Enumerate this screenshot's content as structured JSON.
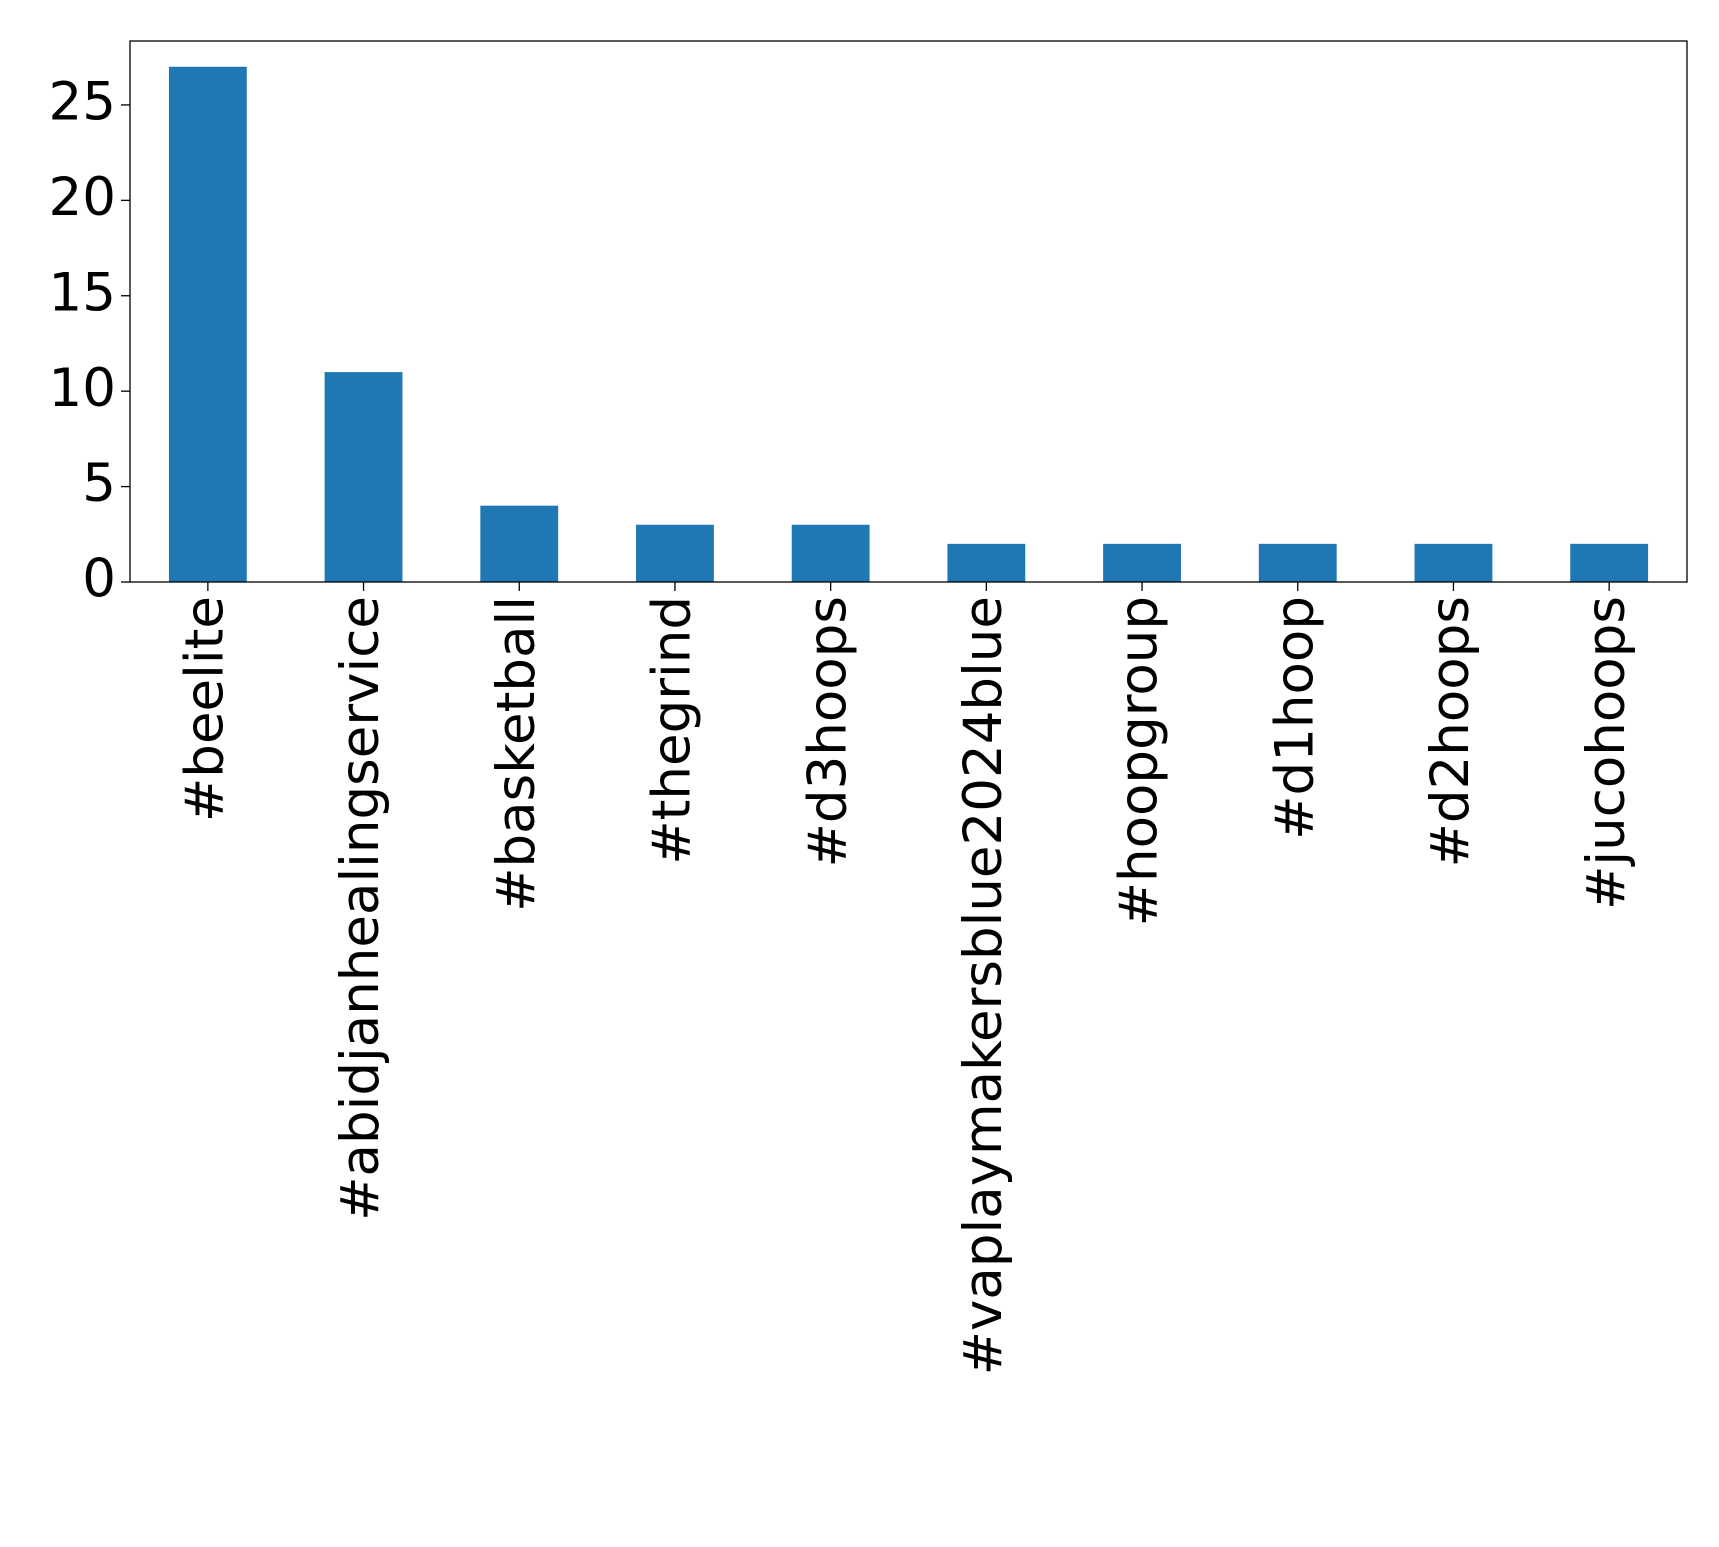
{
  "chart_data": {
    "type": "bar",
    "categories": [
      "#beelite",
      "#abidjanhealingservice",
      "#basketball",
      "#thegrind",
      "#d3hoops",
      "#vaplaymakersblue2024blue",
      "#hoopgroup",
      "#d1hoop",
      "#d2hoops",
      "#jucohoops"
    ],
    "values": [
      27,
      11,
      4,
      3,
      3,
      2,
      2,
      2,
      2,
      2
    ],
    "color": "#1f77b4",
    "ylim": [
      0,
      28.35
    ],
    "yticks": [
      0,
      5,
      10,
      15,
      20,
      25
    ],
    "grid": false
  }
}
